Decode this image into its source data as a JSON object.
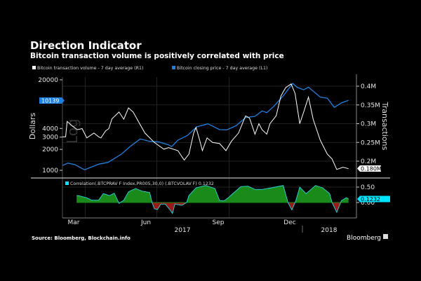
{
  "header": {
    "title": "Direction Indicator",
    "subtitle": "Bitcoin transaction volume is positively correlated with price"
  },
  "footer": {
    "source": "Source: Bloomberg, Blockchain.info",
    "brand": "Bloomberg"
  },
  "colors": {
    "background": "#000000",
    "volume": "#ffffff",
    "price": "#1f7fe0",
    "correlation_line": "#2ad6e0",
    "positive_fill": "#1a8a1a",
    "negative_fill": "#9a1a1a",
    "badge_price": "#1f7fe0",
    "badge_corr": "#00e5ff"
  },
  "chart_data": [
    {
      "type": "line",
      "legend_placement": "top-left",
      "grid": true,
      "left_axis": {
        "label": "Dollars",
        "scale": "log",
        "scale_watermark": "Log",
        "ticks": [
          "20000",
          "4000",
          "3000",
          "2000",
          "1000"
        ],
        "range": [
          1000,
          20000
        ],
        "last_value_badge": "10139"
      },
      "right_axis": {
        "label": "Transactions",
        "ticks": [
          "0.4M",
          "0.35M",
          "0.3M",
          "0.25M",
          "0.2M"
        ],
        "range": [
          0.18,
          0.4
        ],
        "last_value_badge": "0.180M"
      },
      "series": [
        {
          "name": "Bitcoin transaction volume - 7 day average (R1)",
          "axis": "right",
          "color": "#ffffff",
          "x": [
            "2017-02-15",
            "2017-02-19",
            "2017-02-21",
            "2017-02-28",
            "2017-03-06",
            "2017-03-12",
            "2017-03-18",
            "2017-03-27",
            "2017-04-02",
            "2017-04-05",
            "2017-04-11",
            "2017-04-15",
            "2017-04-19",
            "2017-04-28",
            "2017-05-04",
            "2017-05-10",
            "2017-05-16",
            "2017-05-25",
            "2017-05-31",
            "2017-06-12",
            "2017-06-24",
            "2017-06-30",
            "2017-07-12",
            "2017-07-17",
            "2017-07-20",
            "2017-07-26",
            "2017-08-01",
            "2017-08-04",
            "2017-08-09",
            "2017-08-12",
            "2017-08-18",
            "2017-08-25",
            "2017-09-03",
            "2017-09-11",
            "2017-09-18",
            "2017-09-27",
            "2017-10-06",
            "2017-10-11",
            "2017-10-18",
            "2017-10-23",
            "2017-10-27",
            "2017-11-02",
            "2017-11-06",
            "2017-11-14",
            "2017-11-20",
            "2017-11-26",
            "2017-12-03",
            "2017-12-08",
            "2017-12-14",
            "2017-12-19",
            "2017-12-25",
            "2017-12-31",
            "2018-01-09",
            "2018-01-18",
            "2018-01-24",
            "2018-01-30",
            "2018-02-07",
            "2018-02-14"
          ],
          "values": [
            0.265,
            0.265,
            0.306,
            0.293,
            0.284,
            0.287,
            0.262,
            0.275,
            0.265,
            0.262,
            0.281,
            0.287,
            0.313,
            0.331,
            0.312,
            0.342,
            0.331,
            0.297,
            0.275,
            0.25,
            0.232,
            0.236,
            0.228,
            0.212,
            0.203,
            0.219,
            0.275,
            0.29,
            0.253,
            0.228,
            0.262,
            0.25,
            0.247,
            0.228,
            0.253,
            0.275,
            0.321,
            0.315,
            0.272,
            0.3,
            0.284,
            0.272,
            0.3,
            0.321,
            0.374,
            0.396,
            0.406,
            0.381,
            0.3,
            0.331,
            0.371,
            0.312,
            0.256,
            0.219,
            0.206,
            0.178,
            0.184,
            0.18
          ]
        },
        {
          "name": "Bitcoin closing price - 7 day average (L1)",
          "axis": "left",
          "color": "#1f7fe0",
          "x": [
            "2017-02-15",
            "2017-02-22",
            "2017-03-03",
            "2017-03-15",
            "2017-04-02",
            "2017-04-14",
            "2017-05-01",
            "2017-05-13",
            "2017-05-25",
            "2017-06-06",
            "2017-06-18",
            "2017-06-30",
            "2017-07-04",
            "2017-07-12",
            "2017-07-24",
            "2017-08-05",
            "2017-08-19",
            "2017-09-03",
            "2017-09-12",
            "2017-09-24",
            "2017-10-06",
            "2017-10-18",
            "2017-10-27",
            "2017-11-02",
            "2017-11-11",
            "2017-11-23",
            "2017-12-05",
            "2017-12-11",
            "2017-12-19",
            "2017-12-25",
            "2018-01-09",
            "2018-01-18",
            "2018-01-27",
            "2018-02-05",
            "2018-02-14"
          ],
          "values": [
            1175,
            1270,
            1205,
            1016,
            1223,
            1300,
            1705,
            2240,
            2820,
            2610,
            2550,
            2320,
            2190,
            2710,
            3170,
            4220,
            4660,
            3840,
            3810,
            4380,
            5740,
            5970,
            7150,
            6760,
            8330,
            11800,
            17800,
            15500,
            14400,
            15700,
            11300,
            10900,
            8040,
            9350,
            10139
          ]
        }
      ]
    },
    {
      "type": "area",
      "legend_placement": "top-left",
      "y_ticks": [
        "0.50",
        "0.00"
      ],
      "range": [
        -0.4,
        0.6
      ],
      "last_value_badge": "0.1232",
      "series": [
        {
          "name": "Correlation(.BTCPRAV F Index,PR005,30,0) (.BTCVOLAV F) 0.1232",
          "x": [
            "2017-03-05",
            "2017-03-09",
            "2017-03-18",
            "2017-03-24",
            "2017-04-02",
            "2017-04-08",
            "2017-04-16",
            "2017-04-22",
            "2017-04-28",
            "2017-05-04",
            "2017-05-10",
            "2017-05-19",
            "2017-05-28",
            "2017-06-06",
            "2017-06-09",
            "2017-06-12",
            "2017-06-16",
            "2017-06-20",
            "2017-06-26",
            "2017-07-02",
            "2017-07-05",
            "2017-07-08",
            "2017-07-17",
            "2017-07-23",
            "2017-07-26",
            "2017-08-04",
            "2017-08-16",
            "2017-08-28",
            "2017-09-03",
            "2017-09-09",
            "2017-09-15",
            "2017-09-18",
            "2017-09-30",
            "2017-10-09",
            "2017-10-18",
            "2017-10-27",
            "2017-11-08",
            "2017-11-23",
            "2017-11-29",
            "2017-12-04",
            "2017-12-09",
            "2017-12-14",
            "2017-12-22",
            "2018-01-03",
            "2018-01-12",
            "2018-01-21",
            "2018-01-24",
            "2018-01-30",
            "2018-02-05",
            "2018-02-11",
            "2018-02-14"
          ],
          "values": [
            0.227,
            0.212,
            0.152,
            0.076,
            0.076,
            0.288,
            0.227,
            0.303,
            -0.03,
            0.076,
            0.348,
            0.455,
            0.364,
            0.326,
            0,
            -0.205,
            -0.227,
            -0.053,
            -0.053,
            -0.242,
            -0.356,
            -0.053,
            -0.091,
            0,
            0.227,
            0.477,
            0.553,
            0.455,
            0.061,
            0.061,
            0.174,
            0.25,
            0.515,
            0.53,
            0.424,
            0.424,
            0.477,
            0.553,
            0,
            -0.242,
            0.061,
            0.5,
            0.288,
            0.553,
            0.477,
            0.288,
            0,
            -0.318,
            0.061,
            0.152,
            0.1232
          ]
        }
      ]
    }
  ],
  "x_axis": {
    "month_ticks": [
      "Mar",
      "Jun",
      "Sep",
      "Dec"
    ],
    "year_labels": [
      "2017",
      "2018"
    ]
  }
}
